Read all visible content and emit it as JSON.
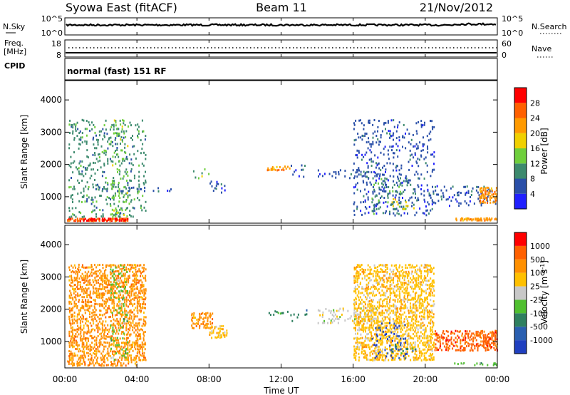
{
  "header": {
    "title_left": "Syowa East (fitACF)",
    "title_center": "Beam 11",
    "title_right": "21/Nov/2012"
  },
  "noise_panel": {
    "left_label": "N.Sky",
    "left_top": "10^5",
    "left_bottom": "10^0",
    "right_top": "10^5",
    "right_bottom": "10^0",
    "right_label": "N.Search"
  },
  "freq_panel": {
    "left_label_line1": "Freq.",
    "left_label_line2": "[MHz]",
    "left_top": "18",
    "left_bottom": "8",
    "right_top": "60",
    "right_bottom": "0",
    "right_label": "Nave"
  },
  "cpid": {
    "label": "CPID",
    "value": "normal (fast) 151 RF"
  },
  "time_axis": {
    "ticks": [
      "00:00",
      "04:00",
      "08:00",
      "12:00",
      "16:00",
      "20:00",
      "00:00"
    ],
    "label": "Time UT"
  },
  "chart_data": [
    {
      "type": "heatmap",
      "name": "power",
      "xlabel": "Time UT",
      "ylabel": "Slant Range [km]",
      "xlim": [
        0,
        24
      ],
      "ylim": [
        180,
        4600
      ],
      "y_ticks": [
        1000,
        2000,
        3000,
        4000
      ],
      "colorbar": {
        "label": "Power [dB]",
        "ticks": [
          "4",
          "8",
          "12",
          "16",
          "20",
          "24",
          "28"
        ],
        "colors": [
          "#2020ff",
          "#2a4fa8",
          "#3d8a6e",
          "#6fcf3c",
          "#f0d000",
          "#ff9a00",
          "#ff6000",
          "#ff0000"
        ]
      },
      "regions": [
        {
          "t0": 0.1,
          "t1": 3.5,
          "r0": 230,
          "r1": 330,
          "level": 6
        },
        {
          "t0": 1.0,
          "t1": 3.5,
          "r0": 240,
          "r1": 320,
          "level": 7
        },
        {
          "t0": 0.2,
          "t1": 4.5,
          "r0": 350,
          "r1": 3400,
          "level": 2
        },
        {
          "t0": 2.5,
          "t1": 3.5,
          "r0": 350,
          "r1": 3400,
          "level": 3
        },
        {
          "t0": 1.5,
          "t1": 6.0,
          "r0": 1150,
          "r1": 1300,
          "level": 1
        },
        {
          "t0": 7.0,
          "t1": 8.0,
          "r0": 1550,
          "r1": 1900,
          "level": 3
        },
        {
          "t0": 8.0,
          "t1": 9.0,
          "r0": 1100,
          "r1": 1500,
          "level": 1
        },
        {
          "t0": 11.2,
          "t1": 12.5,
          "r0": 1800,
          "r1": 1950,
          "level": 5
        },
        {
          "t0": 12.5,
          "t1": 13.6,
          "r0": 1600,
          "r1": 2000,
          "level": 1
        },
        {
          "t0": 14.0,
          "t1": 17.5,
          "r0": 1550,
          "r1": 1850,
          "level": 1
        },
        {
          "t0": 16.0,
          "t1": 20.5,
          "r0": 400,
          "r1": 3400,
          "level": 1
        },
        {
          "t0": 17.0,
          "t1": 19.0,
          "r0": 450,
          "r1": 1600,
          "level": 2
        },
        {
          "t0": 18.0,
          "t1": 19.5,
          "r0": 600,
          "r1": 950,
          "level": 4
        },
        {
          "t0": 20.5,
          "t1": 24.0,
          "r0": 700,
          "r1": 1350,
          "level": 1
        },
        {
          "t0": 23.0,
          "t1": 24.0,
          "r0": 800,
          "r1": 1300,
          "level": 5
        },
        {
          "t0": 21.5,
          "t1": 24.0,
          "r0": 250,
          "r1": 330,
          "level": 5
        }
      ]
    },
    {
      "type": "heatmap",
      "name": "velocity",
      "xlabel": "Time UT",
      "ylabel": "Slant Range [km]",
      "xlim": [
        0,
        24
      ],
      "ylim": [
        180,
        4600
      ],
      "y_ticks": [
        1000,
        2000,
        3000,
        4000
      ],
      "colorbar": {
        "label": "Velocity [m s^-1]",
        "ticks": [
          "1000",
          "500",
          "100",
          "25",
          "-25",
          "-100",
          "-500",
          "-1000"
        ],
        "colors": [
          "#2040c0",
          "#2a5fb0",
          "#2f8060",
          "#50c030",
          "#c8c8c8",
          "#ffc000",
          "#ff9000",
          "#ff6000",
          "#ff0000"
        ]
      },
      "regions": [
        {
          "t0": 0.1,
          "t1": 4.0,
          "r0": 230,
          "r1": 400,
          "level": 6
        },
        {
          "t0": 0.2,
          "t1": 4.5,
          "r0": 400,
          "r1": 3400,
          "level": 6
        },
        {
          "t0": 2.5,
          "t1": 3.5,
          "r0": 400,
          "r1": 3400,
          "level": 3
        },
        {
          "t0": 7.0,
          "t1": 8.2,
          "r0": 1400,
          "r1": 1900,
          "level": 6
        },
        {
          "t0": 8.0,
          "t1": 9.0,
          "r0": 1100,
          "r1": 1500,
          "level": 5
        },
        {
          "t0": 11.2,
          "t1": 12.5,
          "r0": 1800,
          "r1": 1950,
          "level": 2
        },
        {
          "t0": 12.5,
          "t1": 13.6,
          "r0": 1600,
          "r1": 2000,
          "level": 2
        },
        {
          "t0": 14.0,
          "t1": 17.5,
          "r0": 1550,
          "r1": 2050,
          "level": 4
        },
        {
          "t0": 16.0,
          "t1": 20.5,
          "r0": 400,
          "r1": 3400,
          "level": 5
        },
        {
          "t0": 17.0,
          "t1": 19.0,
          "r0": 450,
          "r1": 1600,
          "level": 0
        },
        {
          "t0": 18.0,
          "t1": 19.5,
          "r0": 600,
          "r1": 950,
          "level": 2
        },
        {
          "t0": 20.5,
          "t1": 24.0,
          "r0": 700,
          "r1": 1350,
          "level": 7
        },
        {
          "t0": 23.0,
          "t1": 24.0,
          "r0": 800,
          "r1": 1300,
          "level": 7
        },
        {
          "t0": 21.5,
          "t1": 24.0,
          "r0": 250,
          "r1": 330,
          "level": 3
        }
      ]
    }
  ]
}
